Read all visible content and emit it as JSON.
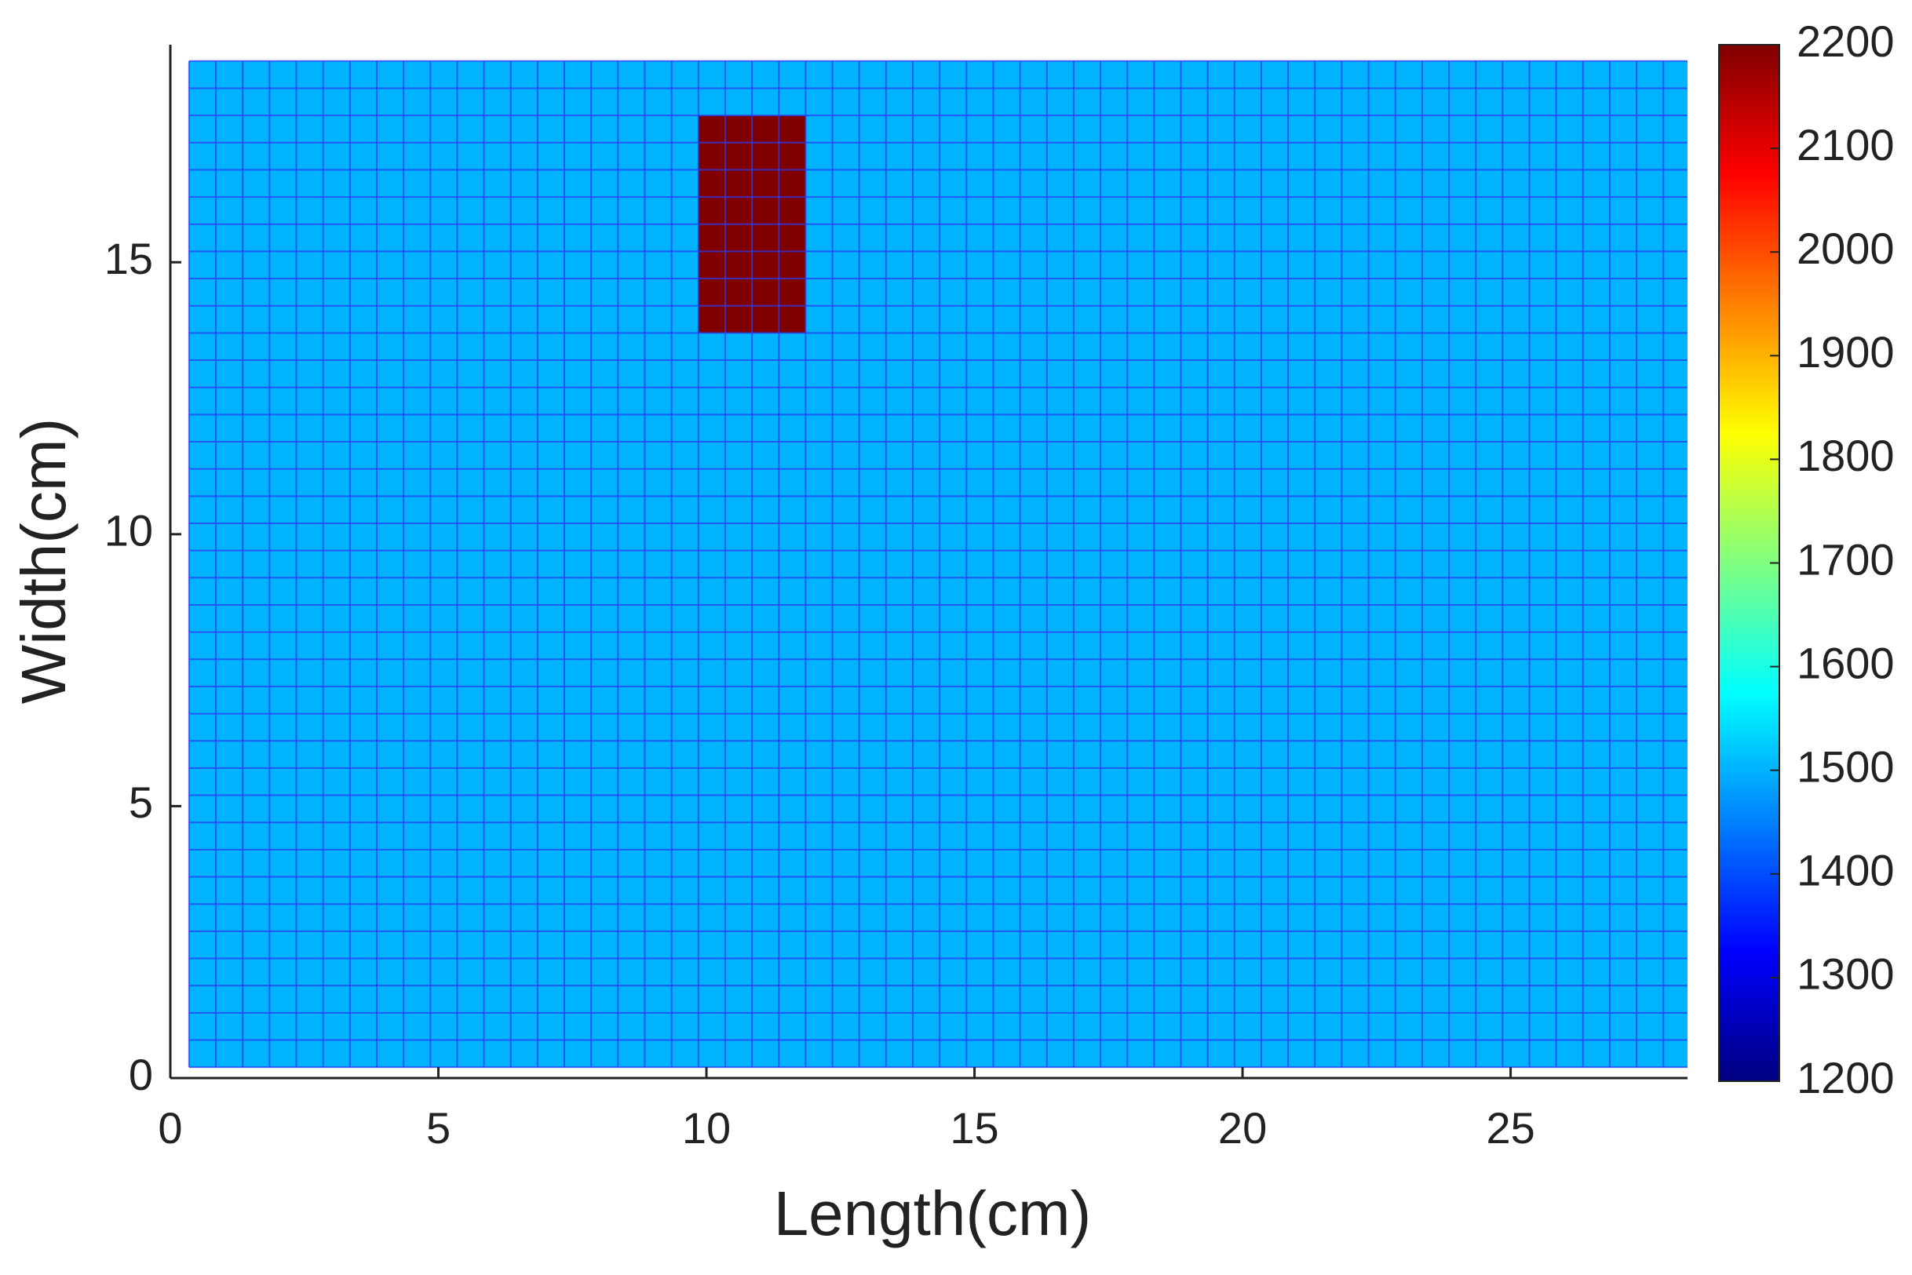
{
  "chart_data": {
    "type": "heatmap",
    "xlabel": "Length(cm)",
    "ylabel": "Width(cm)",
    "xlim": [
      0,
      28.3
    ],
    "xticks": [
      0,
      5,
      10,
      15,
      20,
      25
    ],
    "ylim": [
      0,
      19
    ],
    "yticks": [
      0,
      5,
      10,
      15
    ],
    "cell_size": 0.5,
    "regions": [
      {
        "x": [
          0.35,
          28.35
        ],
        "y": [
          0.2,
          18.7
        ],
        "value": 1500
      },
      {
        "x": [
          9.85,
          11.85
        ],
        "y": [
          13.7,
          17.7
        ],
        "value": 2200
      }
    ],
    "colormap": "jet",
    "colorbar": {
      "lim": [
        1200,
        2200
      ],
      "ticks": [
        1200,
        1300,
        1400,
        1500,
        1600,
        1700,
        1800,
        1900,
        2000,
        2100,
        2200
      ]
    }
  }
}
